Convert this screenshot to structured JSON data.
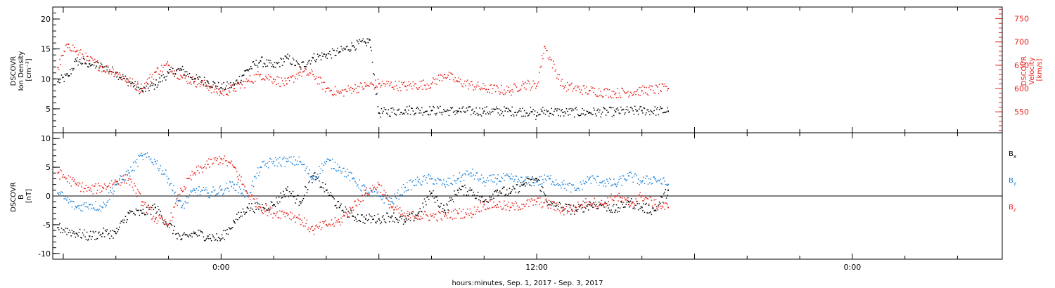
{
  "colors": {
    "frame": "#000000",
    "density": "#000000",
    "velocity": "#e8231c",
    "bx": "#000000",
    "by": "#1f83d8",
    "bz": "#e8231c"
  },
  "xlabel": "hours:minutes, Sep.  1, 2017 - Sep.  3, 2017",
  "chart_data": [
    {
      "type": "scatter",
      "panel": "top",
      "x_ticks": [
        {
          "hours": 0,
          "label": "0:00"
        },
        {
          "hours": 12,
          "label": "12:00"
        },
        {
          "hours": 24,
          "label": "0:00"
        }
      ],
      "xlim_hours": [
        -6.4,
        29.7
      ],
      "y_left": {
        "label_lines": [
          "DSCOVR",
          "Ion Density",
          "[cm⁻³]"
        ],
        "ylim": [
          1,
          22
        ],
        "ticks": [
          "5",
          "10",
          "15",
          "20"
        ]
      },
      "y_right": {
        "label_lines": [
          "DSCOVR",
          "Velocity",
          "[km/s]"
        ],
        "ylim": [
          505,
          775
        ],
        "ticks": [
          "550",
          "600",
          "650",
          "700",
          "750"
        ]
      },
      "series": [
        {
          "key": "density",
          "axis": "left",
          "color": "#000000",
          "x_hours": [
            -6.2,
            -5.8,
            -5.5,
            -5.0,
            -4.5,
            -4.0,
            -3.5,
            -3.0,
            -2.5,
            -2.0,
            -1.5,
            -1.0,
            -0.5,
            0.0,
            0.5,
            1.0,
            1.5,
            2.0,
            2.5,
            3.0,
            3.5,
            4.0,
            4.5,
            5.0,
            5.5,
            5.65,
            6.0,
            7.0,
            8.0,
            9.0,
            10.0,
            11.0,
            11.8,
            12.0,
            12.2,
            13.0,
            14.0,
            15.0,
            16.0,
            17.0
          ],
          "values": [
            9.5,
            10.5,
            13.0,
            12.5,
            12.0,
            11.0,
            9.5,
            8.0,
            9.0,
            11.0,
            11.5,
            10.0,
            9.5,
            8.5,
            9.0,
            11.5,
            13.0,
            12.0,
            13.5,
            12.0,
            13.5,
            14.0,
            14.5,
            15.5,
            16.0,
            16.5,
            4.3,
            4.8,
            4.7,
            4.6,
            4.6,
            4.6,
            4.5,
            3.8,
            4.6,
            4.4,
            4.4,
            4.5,
            4.7,
            4.6
          ]
        },
        {
          "key": "velocity",
          "axis": "right",
          "color": "#e8231c",
          "x_hours": [
            -6.2,
            -5.8,
            -5.5,
            -5.0,
            -4.5,
            -4.0,
            -3.5,
            -3.0,
            -2.5,
            -2.0,
            -1.5,
            -1.0,
            -0.5,
            0.0,
            0.5,
            1.0,
            1.5,
            2.0,
            2.5,
            3.0,
            3.5,
            4.0,
            4.5,
            5.0,
            5.5,
            6.0,
            7.0,
            8.0,
            8.5,
            9.0,
            10.0,
            11.0,
            11.5,
            12.0,
            12.3,
            13.0,
            14.0,
            15.0,
            16.0,
            17.0
          ],
          "values": [
            645,
            695,
            680,
            660,
            645,
            635,
            615,
            600,
            635,
            650,
            625,
            615,
            605,
            590,
            600,
            615,
            630,
            620,
            610,
            635,
            630,
            600,
            590,
            600,
            605,
            610,
            605,
            610,
            630,
            615,
            600,
            595,
            610,
            605,
            690,
            605,
            595,
            590,
            595,
            600
          ]
        }
      ]
    },
    {
      "type": "scatter",
      "panel": "bottom",
      "x_ticks": [
        {
          "hours": 0,
          "label": "0:00"
        },
        {
          "hours": 12,
          "label": "12:00"
        },
        {
          "hours": 24,
          "label": "0:00"
        }
      ],
      "xlim_hours": [
        -6.4,
        29.7
      ],
      "y_left": {
        "label_lines": [
          "DSCOVR",
          "B",
          "[nT]"
        ],
        "ylim": [
          -11,
          11
        ],
        "ticks": [
          "-10",
          "-5",
          "0",
          "5",
          "10"
        ]
      },
      "zero_line": true,
      "legend": {
        "placement": "right",
        "entries": [
          {
            "base": "B",
            "sub": "x",
            "color": "#000000"
          },
          {
            "base": "B",
            "sub": "y",
            "color": "#1f83d8"
          },
          {
            "base": "B",
            "sub": "z",
            "color": "#e8231c"
          }
        ]
      },
      "series": [
        {
          "key": "bx",
          "name": "Bx",
          "color": "#000000",
          "x_hours": [
            -6.2,
            -5.5,
            -5.0,
            -4.5,
            -4.0,
            -3.5,
            -3.0,
            -2.5,
            -2.0,
            -1.5,
            -1.0,
            -0.5,
            0.0,
            0.5,
            1.0,
            1.5,
            2.0,
            2.5,
            3.0,
            3.5,
            4.0,
            4.5,
            5.0,
            5.5,
            6.0,
            6.5,
            7.0,
            7.5,
            8.0,
            8.5,
            9.0,
            9.5,
            10.0,
            10.5,
            11.0,
            11.5,
            12.0,
            12.5,
            13.0,
            13.5,
            14.0,
            14.5,
            15.0,
            15.5,
            16.0,
            16.5,
            17.0
          ],
          "values": [
            -5.5,
            -6.5,
            -7.0,
            -6.5,
            -6.5,
            -3.0,
            -3.0,
            -2.0,
            -5.0,
            -7.5,
            -6.5,
            -7.0,
            -7.5,
            -4.5,
            -2.0,
            -2.0,
            -1.5,
            1.0,
            -1.0,
            3.5,
            1.0,
            -2.0,
            -3.5,
            -4.0,
            -4.0,
            -3.5,
            -4.5,
            -3.0,
            0.5,
            -2.5,
            1.0,
            1.0,
            -1.0,
            1.0,
            0.5,
            2.0,
            3.0,
            -1.5,
            -2.0,
            -2.5,
            -1.5,
            -1.5,
            -2.5,
            -1.0,
            -2.0,
            -2.5,
            1.0
          ]
        },
        {
          "key": "by",
          "name": "By",
          "color": "#1f83d8",
          "x_hours": [
            -6.2,
            -5.5,
            -5.0,
            -4.5,
            -4.0,
            -3.5,
            -3.0,
            -2.5,
            -2.0,
            -1.5,
            -1.0,
            -0.5,
            0.0,
            0.5,
            1.0,
            1.5,
            2.0,
            2.5,
            3.0,
            3.5,
            4.0,
            4.5,
            5.0,
            5.5,
            6.0,
            6.5,
            7.0,
            7.5,
            8.0,
            8.5,
            9.0,
            9.5,
            10.0,
            10.5,
            11.0,
            11.5,
            12.0,
            12.5,
            13.0,
            13.5,
            14.0,
            14.5,
            15.0,
            15.5,
            16.0,
            16.5,
            17.0
          ],
          "values": [
            0.5,
            -2.0,
            -1.5,
            -2.0,
            2.0,
            4.0,
            7.0,
            6.0,
            3.0,
            -2.0,
            1.0,
            0.5,
            1.0,
            2.0,
            0.0,
            5.0,
            6.0,
            6.0,
            6.0,
            3.0,
            6.0,
            5.0,
            3.0,
            1.0,
            0.0,
            -1.0,
            1.5,
            2.5,
            3.0,
            2.0,
            3.0,
            4.0,
            2.5,
            3.0,
            3.0,
            2.5,
            2.5,
            3.0,
            2.0,
            1.0,
            3.0,
            2.5,
            2.0,
            3.5,
            2.5,
            3.0,
            2.0
          ]
        },
        {
          "key": "bz",
          "name": "Bz",
          "color": "#e8231c",
          "x_hours": [
            -6.2,
            -5.5,
            -5.0,
            -4.5,
            -4.0,
            -3.5,
            -3.0,
            -2.5,
            -2.0,
            -1.5,
            -1.0,
            -0.5,
            0.0,
            0.5,
            1.0,
            1.5,
            2.0,
            2.5,
            3.0,
            3.5,
            4.0,
            4.5,
            5.0,
            5.5,
            6.0,
            6.5,
            7.0,
            7.5,
            8.0,
            8.5,
            9.0,
            9.5,
            10.0,
            10.5,
            11.0,
            11.5,
            12.0,
            12.5,
            13.0,
            13.5,
            14.0,
            14.5,
            15.0,
            15.5,
            16.0,
            16.5,
            17.0
          ],
          "values": [
            4.0,
            2.0,
            1.0,
            1.5,
            2.5,
            3.0,
            -1.0,
            -4.0,
            -5.0,
            1.0,
            4.0,
            5.5,
            6.5,
            5.0,
            0.5,
            -2.0,
            -3.0,
            -3.0,
            -4.0,
            -6.0,
            -5.0,
            -4.5,
            -2.0,
            0.5,
            2.0,
            -2.0,
            -3.5,
            -3.5,
            -3.5,
            -3.5,
            -3.0,
            -3.0,
            -1.5,
            -1.5,
            -2.0,
            -1.5,
            -1.0,
            -1.5,
            -2.5,
            -2.0,
            -1.0,
            -1.5,
            0.0,
            -1.5,
            0.0,
            -1.5,
            -2.0
          ]
        }
      ]
    }
  ]
}
